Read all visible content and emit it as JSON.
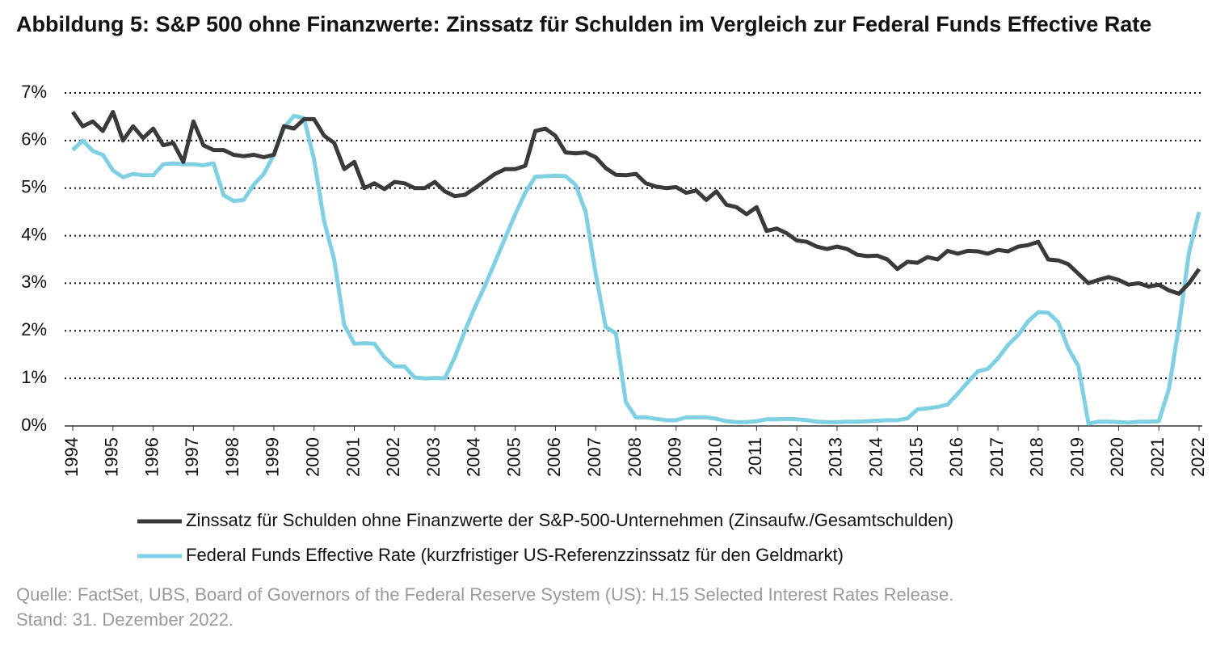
{
  "chart_data": {
    "type": "line",
    "title": "Abbildung 5: S&P 500 ohne Finanzwerte: Zinssatz für Schulden im Vergleich zur Federal Funds Effective Rate",
    "source": "Quelle: FactSet, UBS, Board of Governors of the Federal Reserve System (US): H.15 Selected Interest Rates Release.",
    "date_note": "Stand: 31. Dezember 2022.",
    "x": [
      1994,
      1994.25,
      1994.5,
      1994.75,
      1995,
      1995.25,
      1995.5,
      1995.75,
      1996,
      1996.25,
      1996.5,
      1996.75,
      1997,
      1997.25,
      1997.5,
      1997.75,
      1998,
      1998.25,
      1998.5,
      1998.75,
      1999,
      1999.25,
      1999.5,
      1999.75,
      2000,
      2000.25,
      2000.5,
      2000.75,
      2001,
      2001.25,
      2001.5,
      2001.75,
      2002,
      2002.25,
      2002.5,
      2002.75,
      2003,
      2003.25,
      2003.5,
      2003.75,
      2004,
      2004.25,
      2004.5,
      2004.75,
      2005,
      2005.25,
      2005.5,
      2005.75,
      2006,
      2006.25,
      2006.5,
      2006.75,
      2007,
      2007.25,
      2007.5,
      2007.75,
      2008,
      2008.25,
      2008.5,
      2008.75,
      2009,
      2009.25,
      2009.5,
      2009.75,
      2010,
      2010.25,
      2010.5,
      2010.75,
      2011,
      2011.25,
      2011.5,
      2011.75,
      2012,
      2012.25,
      2012.5,
      2012.75,
      2013,
      2013.25,
      2013.5,
      2013.75,
      2014,
      2014.25,
      2014.5,
      2014.75,
      2015,
      2015.25,
      2015.5,
      2015.75,
      2016,
      2016.25,
      2016.5,
      2016.75,
      2017,
      2017.25,
      2017.5,
      2017.75,
      2018,
      2018.25,
      2018.5,
      2018.75,
      2019,
      2019.25,
      2019.5,
      2019.75,
      2020,
      2020.25,
      2020.5,
      2020.75,
      2021,
      2021.25,
      2021.5,
      2021.75,
      2022
    ],
    "series": [
      {
        "name": "Zinssatz für Schulden ohne Finanzwerte der S&P-500-Unternehmen (Zinsaufw./Gesamtschulden)",
        "color": "#3a3a3a",
        "values": [
          6.6,
          6.3,
          6.4,
          6.2,
          6.6,
          6.0,
          6.3,
          6.05,
          6.25,
          5.9,
          5.95,
          5.55,
          6.4,
          5.9,
          5.8,
          5.8,
          5.7,
          5.67,
          5.7,
          5.65,
          5.7,
          6.3,
          6.25,
          6.45,
          6.45,
          6.1,
          5.95,
          5.4,
          5.55,
          5.0,
          5.1,
          4.98,
          5.13,
          5.1,
          5.0,
          5.0,
          5.13,
          4.93,
          4.83,
          4.86,
          5.0,
          5.15,
          5.3,
          5.4,
          5.4,
          5.47,
          6.2,
          6.25,
          6.1,
          5.75,
          5.73,
          5.75,
          5.65,
          5.42,
          5.28,
          5.27,
          5.3,
          5.1,
          5.03,
          5.0,
          5.02,
          4.9,
          4.95,
          4.75,
          4.93,
          4.65,
          4.6,
          4.45,
          4.6,
          4.1,
          4.15,
          4.05,
          3.9,
          3.87,
          3.77,
          3.72,
          3.77,
          3.72,
          3.6,
          3.57,
          3.58,
          3.5,
          3.3,
          3.45,
          3.43,
          3.55,
          3.5,
          3.68,
          3.62,
          3.68,
          3.67,
          3.62,
          3.7,
          3.67,
          3.77,
          3.8,
          3.87,
          3.5,
          3.48,
          3.4,
          3.2,
          3.0,
          3.07,
          3.13,
          3.07,
          2.97,
          3.0,
          2.93,
          2.97,
          2.85,
          2.78,
          3.0,
          3.3
        ]
      },
      {
        "name": "Federal Funds Effective Rate (kurzfristiger US-Referenzzinssatz für den Geldmarkt)",
        "color": "#7fd0e3",
        "values": [
          5.8,
          6.0,
          5.78,
          5.7,
          5.37,
          5.23,
          5.3,
          5.27,
          5.27,
          5.5,
          5.52,
          5.5,
          5.5,
          5.48,
          5.52,
          4.85,
          4.73,
          4.75,
          5.07,
          5.3,
          5.7,
          6.27,
          6.52,
          6.47,
          5.6,
          4.3,
          3.5,
          2.12,
          1.73,
          1.74,
          1.73,
          1.44,
          1.25,
          1.25,
          1.02,
          1.0,
          1.01,
          1.0,
          1.45,
          2.0,
          2.5,
          2.95,
          3.45,
          3.95,
          4.45,
          4.9,
          5.24,
          5.25,
          5.26,
          5.25,
          5.07,
          4.5,
          3.2,
          2.08,
          1.95,
          0.5,
          0.18,
          0.18,
          0.15,
          0.12,
          0.12,
          0.18,
          0.18,
          0.18,
          0.15,
          0.1,
          0.08,
          0.08,
          0.1,
          0.14,
          0.14,
          0.15,
          0.14,
          0.12,
          0.09,
          0.08,
          0.08,
          0.09,
          0.09,
          0.1,
          0.11,
          0.12,
          0.12,
          0.16,
          0.35,
          0.37,
          0.4,
          0.45,
          0.68,
          0.92,
          1.15,
          1.2,
          1.42,
          1.7,
          1.91,
          2.2,
          2.39,
          2.38,
          2.18,
          1.63,
          1.26,
          0.05,
          0.09,
          0.09,
          0.08,
          0.07,
          0.09,
          0.09,
          0.1,
          0.78,
          2.1,
          3.65,
          4.5
        ]
      }
    ],
    "xlim": [
      1994,
      2022
    ],
    "xticks": [
      1994,
      1995,
      1996,
      1997,
      1998,
      1999,
      2000,
      2001,
      2002,
      2003,
      2004,
      2005,
      2006,
      2007,
      2008,
      2009,
      2010,
      2011,
      2012,
      2013,
      2014,
      2015,
      2016,
      2017,
      2018,
      2019,
      2020,
      2021,
      2022
    ],
    "ylim": [
      0,
      7
    ],
    "yticks": [
      {
        "value": 0,
        "label": "0%"
      },
      {
        "value": 1,
        "label": "1%"
      },
      {
        "value": 2,
        "label": "2%"
      },
      {
        "value": 3,
        "label": "3%"
      },
      {
        "value": 4,
        "label": "4%"
      },
      {
        "value": 5,
        "label": "5%"
      },
      {
        "value": 6,
        "label": "6%"
      },
      {
        "value": 7,
        "label": "7%"
      }
    ],
    "grid": true
  }
}
